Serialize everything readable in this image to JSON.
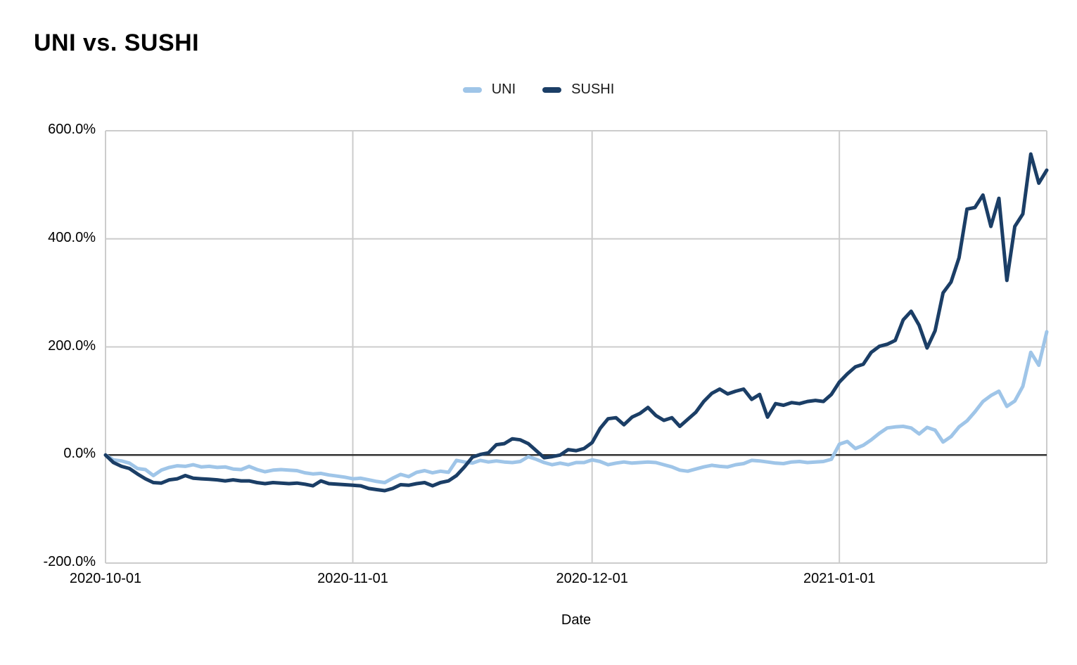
{
  "header": {
    "title": "UNI vs. SUSHI"
  },
  "legend": {
    "items": [
      {
        "label": "UNI"
      },
      {
        "label": "SUSHI"
      }
    ]
  },
  "axes": {
    "x_title": "Date"
  },
  "chart_data": {
    "type": "line",
    "title": "UNI vs. SUSHI",
    "xlabel": "Date",
    "ylabel": "",
    "ylim": [
      -200,
      600
    ],
    "grid": true,
    "legend_position": "top-center",
    "grid_color": "#cccccc",
    "zero_line_color": "#333333",
    "y_ticks": [
      {
        "label": "600.0%",
        "value": 600
      },
      {
        "label": "400.0%",
        "value": 400
      },
      {
        "label": "200.0%",
        "value": 200
      },
      {
        "label": "0.0%",
        "value": 0
      },
      {
        "label": "-200.0%",
        "value": -200
      }
    ],
    "x_ticks": [
      {
        "label": "2020-10-01",
        "index": 0
      },
      {
        "label": "2020-11-01",
        "index": 31
      },
      {
        "label": "2020-12-01",
        "index": 61
      },
      {
        "label": "2021-01-01",
        "index": 92
      }
    ],
    "x": [
      "2020-10-01",
      "2020-10-02",
      "2020-10-03",
      "2020-10-04",
      "2020-10-05",
      "2020-10-06",
      "2020-10-07",
      "2020-10-08",
      "2020-10-09",
      "2020-10-10",
      "2020-10-11",
      "2020-10-12",
      "2020-10-13",
      "2020-10-14",
      "2020-10-15",
      "2020-10-16",
      "2020-10-17",
      "2020-10-18",
      "2020-10-19",
      "2020-10-20",
      "2020-10-21",
      "2020-10-22",
      "2020-10-23",
      "2020-10-24",
      "2020-10-25",
      "2020-10-26",
      "2020-10-27",
      "2020-10-28",
      "2020-10-29",
      "2020-10-30",
      "2020-10-31",
      "2020-11-01",
      "2020-11-02",
      "2020-11-03",
      "2020-11-04",
      "2020-11-05",
      "2020-11-06",
      "2020-11-07",
      "2020-11-08",
      "2020-11-09",
      "2020-11-10",
      "2020-11-11",
      "2020-11-12",
      "2020-11-13",
      "2020-11-14",
      "2020-11-15",
      "2020-11-16",
      "2020-11-17",
      "2020-11-18",
      "2020-11-19",
      "2020-11-20",
      "2020-11-21",
      "2020-11-22",
      "2020-11-23",
      "2020-11-24",
      "2020-11-25",
      "2020-11-26",
      "2020-11-27",
      "2020-11-28",
      "2020-11-29",
      "2020-11-30",
      "2020-12-01",
      "2020-12-02",
      "2020-12-03",
      "2020-12-04",
      "2020-12-05",
      "2020-12-06",
      "2020-12-07",
      "2020-12-08",
      "2020-12-09",
      "2020-12-10",
      "2020-12-11",
      "2020-12-12",
      "2020-12-13",
      "2020-12-14",
      "2020-12-15",
      "2020-12-16",
      "2020-12-17",
      "2020-12-18",
      "2020-12-19",
      "2020-12-20",
      "2020-12-21",
      "2020-12-22",
      "2020-12-23",
      "2020-12-24",
      "2020-12-25",
      "2020-12-26",
      "2020-12-27",
      "2020-12-28",
      "2020-12-29",
      "2020-12-30",
      "2020-12-31",
      "2021-01-01",
      "2021-01-02",
      "2021-01-03",
      "2021-01-04",
      "2021-01-05",
      "2021-01-06",
      "2021-01-07",
      "2021-01-08",
      "2021-01-09",
      "2021-01-10",
      "2021-01-11",
      "2021-01-12",
      "2021-01-13",
      "2021-01-14",
      "2021-01-15",
      "2021-01-16",
      "2021-01-17",
      "2021-01-18",
      "2021-01-19",
      "2021-01-20",
      "2021-01-21",
      "2021-01-22",
      "2021-01-23",
      "2021-01-24",
      "2021-01-25",
      "2021-01-26",
      "2021-01-27"
    ],
    "series": [
      {
        "name": "UNI",
        "color": "#9fc5e8",
        "values": [
          0,
          -9,
          -11,
          -15,
          -25,
          -27,
          -38,
          -28,
          -23,
          -20,
          -21,
          -18,
          -22,
          -21,
          -23,
          -22,
          -26,
          -27,
          -21,
          -27,
          -31,
          -28,
          -27,
          -28,
          -29,
          -33,
          -35,
          -34,
          -37,
          -39,
          -41,
          -44,
          -43,
          -46,
          -49,
          -51,
          -43,
          -36,
          -40,
          -32,
          -29,
          -33,
          -30,
          -32,
          -10,
          -13,
          -15,
          -10,
          -13,
          -11,
          -13,
          -14,
          -12,
          -3,
          -8,
          -14,
          -18,
          -15,
          -18,
          -14,
          -14,
          -9,
          -12,
          -18,
          -15,
          -13,
          -15,
          -14,
          -13,
          -14,
          -18,
          -22,
          -28,
          -30,
          -26,
          -22,
          -19,
          -21,
          -22,
          -18,
          -16,
          -10,
          -11,
          -13,
          -15,
          -16,
          -13,
          -12,
          -14,
          -13,
          -12,
          -8,
          20,
          25,
          12,
          18,
          28,
          40,
          50,
          52,
          53,
          50,
          39,
          51,
          46,
          24,
          34,
          52,
          63,
          80,
          99,
          110,
          118,
          90,
          100,
          127,
          190,
          166,
          228
        ]
      },
      {
        "name": "SUSHI",
        "color": "#1b3e66",
        "values": [
          0,
          -14,
          -21,
          -25,
          -35,
          -44,
          -51,
          -52,
          -46,
          -44,
          -38,
          -43,
          -44,
          -45,
          -46,
          -48,
          -46,
          -48,
          -48,
          -51,
          -53,
          -51,
          -52,
          -53,
          -52,
          -54,
          -57,
          -48,
          -53,
          -54,
          -55,
          -56,
          -57,
          -62,
          -64,
          -66,
          -62,
          -55,
          -56,
          -53,
          -51,
          -57,
          -51,
          -48,
          -38,
          -22,
          -4,
          1,
          4,
          19,
          21,
          30,
          28,
          21,
          8,
          -5,
          -3,
          0,
          10,
          8,
          12,
          23,
          49,
          67,
          69,
          56,
          70,
          77,
          88,
          73,
          64,
          69,
          53,
          66,
          79,
          99,
          114,
          122,
          113,
          118,
          122,
          103,
          112,
          70,
          95,
          92,
          97,
          95,
          99,
          101,
          99,
          112,
          135,
          150,
          163,
          168,
          190,
          201,
          205,
          212,
          250,
          266,
          240,
          198,
          230,
          300,
          320,
          365,
          455,
          458,
          481,
          423,
          475,
          323,
          423,
          446,
          557,
          503,
          527
        ]
      }
    ]
  }
}
